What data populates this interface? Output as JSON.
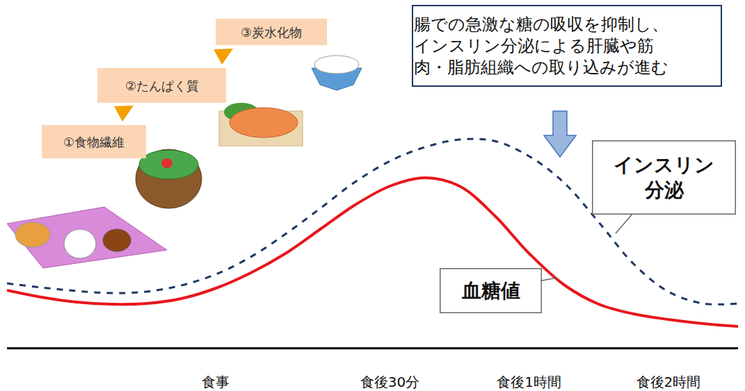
{
  "chart_data": {
    "type": "line",
    "categories": [
      null,
      null,
      null,
      null,
      null,
      null,
      "食事",
      null,
      null,
      null,
      null,
      "食後30分",
      null,
      null,
      null,
      "食後1時間",
      null,
      null,
      null,
      "食後2時間",
      null,
      null
    ],
    "series": [
      {
        "name": "インスリン\n分泌",
        "color": "#1f3864",
        "line_style": "dashed",
        "values": [
          23,
          21.5,
          20.25,
          19.5,
          20,
          22.25,
          26.25,
          32.5,
          40.75,
          50,
          59.5,
          67,
          72,
          74.75,
          74.25,
          68.75,
          59.25,
          45,
          30,
          20,
          15.75,
          15.75
        ]
      },
      {
        "name": "血糖値",
        "color": "#e8161d",
        "line_style": "solid",
        "values": [
          20.5,
          18,
          16.25,
          15.5,
          15.75,
          17.5,
          21.25,
          26.75,
          33.75,
          42.5,
          51.25,
          58,
          61,
          58,
          47.5,
          33.75,
          22.5,
          15.5,
          12,
          10,
          8.5,
          7.5
        ]
      }
    ],
    "ylim": [
      0,
      100
    ],
    "tick_labels": "x",
    "grid": false,
    "annotations": {
      "steps": [
        "①食物繊維",
        "②たんぱく質",
        "③炭水化物"
      ],
      "note": [
        "腸での急激な糖の吸収を抑制し、",
        "インスリン分泌による肝臓や筋",
        "肉・脂肪組織への取り込みが進む"
      ]
    }
  }
}
